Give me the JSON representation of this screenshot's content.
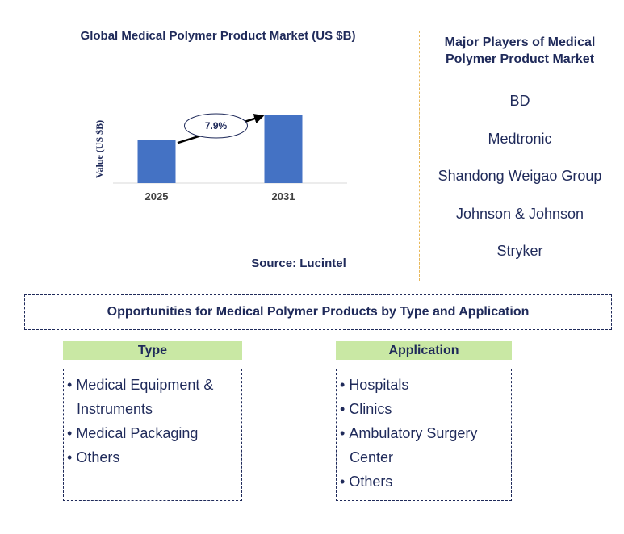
{
  "chart_data": {
    "type": "bar",
    "title": "Global Medical Polymer Product Market (US $B)",
    "ylabel": "Value (US $B)",
    "xlabel": "",
    "categories": [
      "2025",
      "2031"
    ],
    "values": [
      1.0,
      1.58
    ],
    "cagr_label": "7.9%",
    "bar_color": "#4472c4",
    "grid": false
  },
  "source": "Source: Lucintel",
  "players": {
    "title": "Major Players of Medical Polymer Product Market",
    "items": [
      "BD",
      "Medtronic",
      "Shandong Weigao Group",
      "Johnson & Johnson",
      "Stryker"
    ]
  },
  "opportunities": {
    "title": "Opportunities for Medical Polymer Products by Type and Application",
    "type_header": "Type",
    "type_items": [
      "Medical Equipment & Instruments",
      "Medical Packaging",
      "Others"
    ],
    "application_header": "Application",
    "application_items": [
      "Hospitals",
      "Clinics",
      "Ambulatory Surgery Center",
      "Others"
    ],
    "header_color": "#c9e8a4",
    "text_color": "#1f2a5a",
    "divider_color": "#e8b85a"
  }
}
